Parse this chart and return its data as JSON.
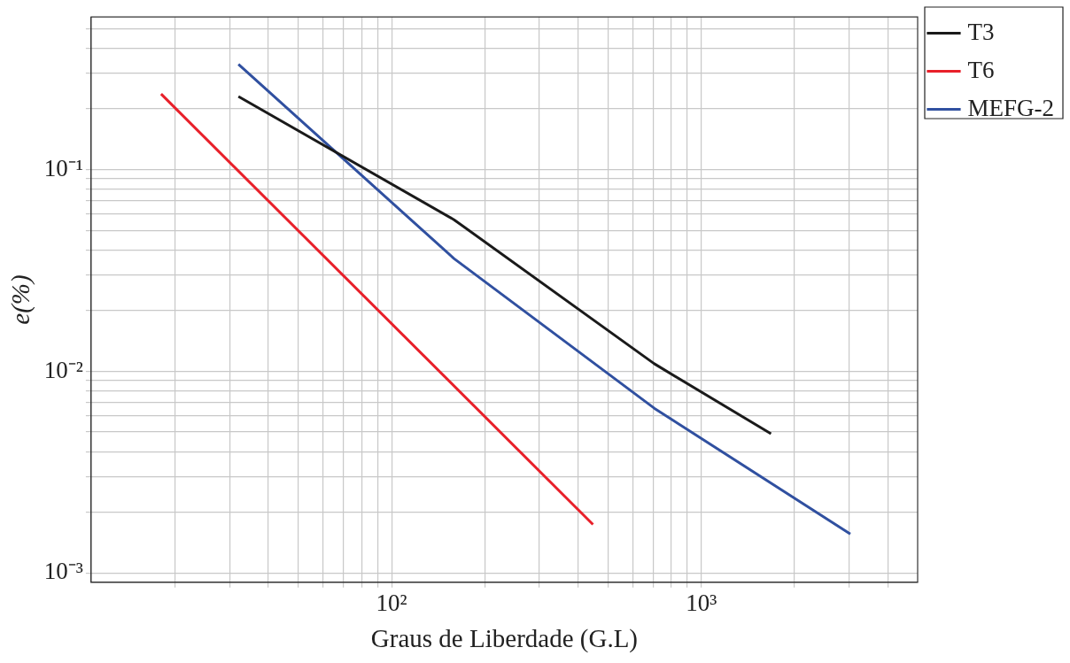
{
  "chart_data": {
    "type": "line",
    "xlabel": "Graus de Liberdade (G.L)",
    "ylabel": "e(%)",
    "log": "xy",
    "grid": true,
    "legend": "top right",
    "marker": "none",
    "line_style": "solid",
    "xlim": [
      10.7,
      5000
    ],
    "ylim": [
      0.0009,
      0.57
    ],
    "xticks": [
      {
        "value": 20,
        "label": null
      },
      {
        "value": 30,
        "label": null
      },
      {
        "value": 40,
        "label": null
      },
      {
        "value": 50,
        "label": null
      },
      {
        "value": 60,
        "label": null
      },
      {
        "value": 70,
        "label": null
      },
      {
        "value": 80,
        "label": null
      },
      {
        "value": 90,
        "label": null
      },
      {
        "value": 100,
        "label": "10²"
      },
      {
        "value": 200,
        "label": null
      },
      {
        "value": 300,
        "label": null
      },
      {
        "value": 400,
        "label": null
      },
      {
        "value": 500,
        "label": null
      },
      {
        "value": 600,
        "label": null
      },
      {
        "value": 700,
        "label": null
      },
      {
        "value": 800,
        "label": null
      },
      {
        "value": 900,
        "label": null
      },
      {
        "value": 1000,
        "label": "10³"
      },
      {
        "value": 2000,
        "label": null
      },
      {
        "value": 3000,
        "label": null
      },
      {
        "value": 4000,
        "label": null
      }
    ],
    "yticks": [
      {
        "value": 0.001,
        "label": "10⁻³"
      },
      {
        "value": 0.002,
        "label": null
      },
      {
        "value": 0.003,
        "label": null
      },
      {
        "value": 0.004,
        "label": null
      },
      {
        "value": 0.005,
        "label": null
      },
      {
        "value": 0.006,
        "label": null
      },
      {
        "value": 0.007,
        "label": null
      },
      {
        "value": 0.008,
        "label": null
      },
      {
        "value": 0.009,
        "label": null
      },
      {
        "value": 0.01,
        "label": "10⁻²"
      },
      {
        "value": 0.02,
        "label": null
      },
      {
        "value": 0.03,
        "label": null
      },
      {
        "value": 0.04,
        "label": null
      },
      {
        "value": 0.05,
        "label": null
      },
      {
        "value": 0.06,
        "label": null
      },
      {
        "value": 0.07,
        "label": null
      },
      {
        "value": 0.08,
        "label": null
      },
      {
        "value": 0.09,
        "label": null
      },
      {
        "value": 0.1,
        "label": "10⁻¹"
      },
      {
        "value": 0.2,
        "label": null
      },
      {
        "value": 0.3,
        "label": null
      },
      {
        "value": 0.4,
        "label": null
      },
      {
        "value": 0.5,
        "label": null
      }
    ],
    "series": [
      {
        "name": "T3",
        "color": "#1a1a1a",
        "x": [
          32,
          159,
          705,
          1680
        ],
        "values": [
          0.23,
          0.0564,
          0.0109,
          0.0049
        ]
      },
      {
        "name": "T6",
        "color": "#e8202a",
        "x": [
          18,
          447
        ],
        "values": [
          0.237,
          0.00174
        ]
      },
      {
        "name": "MEFG-2",
        "color": "#3050a0",
        "x": [
          32,
          159,
          705,
          3030
        ],
        "values": [
          0.332,
          0.0362,
          0.00656,
          0.00156
        ]
      }
    ]
  }
}
